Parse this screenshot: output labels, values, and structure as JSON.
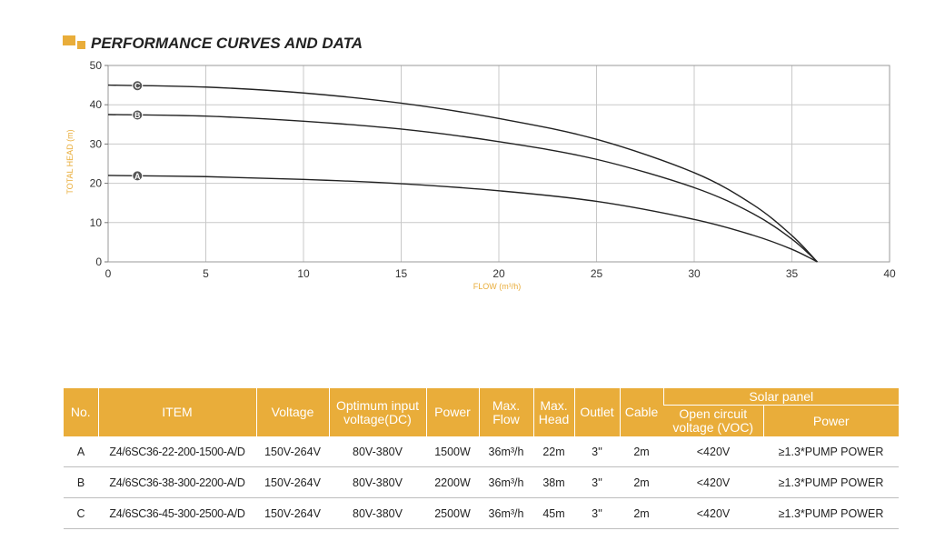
{
  "title": "PERFORMANCE CURVES AND DATA",
  "colors": {
    "accent": "#e9ad3a",
    "line": "#222222",
    "grid": "#c8c8c8",
    "axis_label": "#e9ad3a"
  },
  "chart_data": {
    "type": "line",
    "title": "",
    "xlabel": "FLOW (m³/h)",
    "ylabel": "TOTAL HEAD (m)",
    "xlim": [
      0,
      40
    ],
    "ylim": [
      0,
      50
    ],
    "x_ticks": [
      0,
      5,
      10,
      15,
      20,
      25,
      30,
      35,
      40
    ],
    "y_ticks": [
      0,
      10,
      20,
      30,
      40,
      50
    ],
    "grid": true,
    "series": [
      {
        "name": "A",
        "x": [
          0,
          5,
          10,
          15,
          20,
          25,
          30,
          33,
          35,
          36.3
        ],
        "y": [
          22,
          21.7,
          21,
          19.9,
          18.1,
          15.4,
          10.8,
          6.8,
          3.2,
          0
        ]
      },
      {
        "name": "B",
        "x": [
          0,
          5,
          10,
          15,
          20,
          25,
          30,
          33,
          35,
          36.3
        ],
        "y": [
          37.5,
          37.1,
          35.8,
          33.8,
          30.6,
          26.1,
          18.9,
          12.3,
          5.8,
          0
        ]
      },
      {
        "name": "C",
        "x": [
          0,
          5,
          10,
          15,
          20,
          25,
          30,
          33,
          35,
          36.3
        ],
        "y": [
          45,
          44.5,
          43,
          40.4,
          36.5,
          31.2,
          22.7,
          14.6,
          6.7,
          0
        ]
      }
    ],
    "marker_x": 1.5
  },
  "table": {
    "headers": {
      "no": "No.",
      "item": "ITEM",
      "voltage": "Voltage",
      "optimum": "Optimum input voltage(DC)",
      "power": "Power",
      "max_flow": "Max. Flow",
      "max_head": "Max. Head",
      "outlet": "Outlet",
      "cable": "Cable",
      "solar_panel": "Solar panel",
      "voc": "Open circuit voltage (VOC)",
      "solar_power": "Power"
    },
    "rows": [
      {
        "no": "A",
        "item": "Z4/6SC36-22-200-1500-A/D",
        "voltage": "150V-264V",
        "optimum": "80V-380V",
        "power": "1500W",
        "max_flow": "36m³/h",
        "max_head": "22m",
        "outlet": "3''",
        "cable": "2m",
        "voc": "<420V",
        "solar_power": "≥1.3*PUMP POWER"
      },
      {
        "no": "B",
        "item": "Z4/6SC36-38-300-2200-A/D",
        "voltage": "150V-264V",
        "optimum": "80V-380V",
        "power": "2200W",
        "max_flow": "36m³/h",
        "max_head": "38m",
        "outlet": "3''",
        "cable": "2m",
        "voc": "<420V",
        "solar_power": "≥1.3*PUMP POWER"
      },
      {
        "no": "C",
        "item": "Z4/6SC36-45-300-2500-A/D",
        "voltage": "150V-264V",
        "optimum": "80V-380V",
        "power": "2500W",
        "max_flow": "36m³/h",
        "max_head": "45m",
        "outlet": "3''",
        "cable": "2m",
        "voc": "<420V",
        "solar_power": "≥1.3*PUMP POWER"
      }
    ]
  }
}
